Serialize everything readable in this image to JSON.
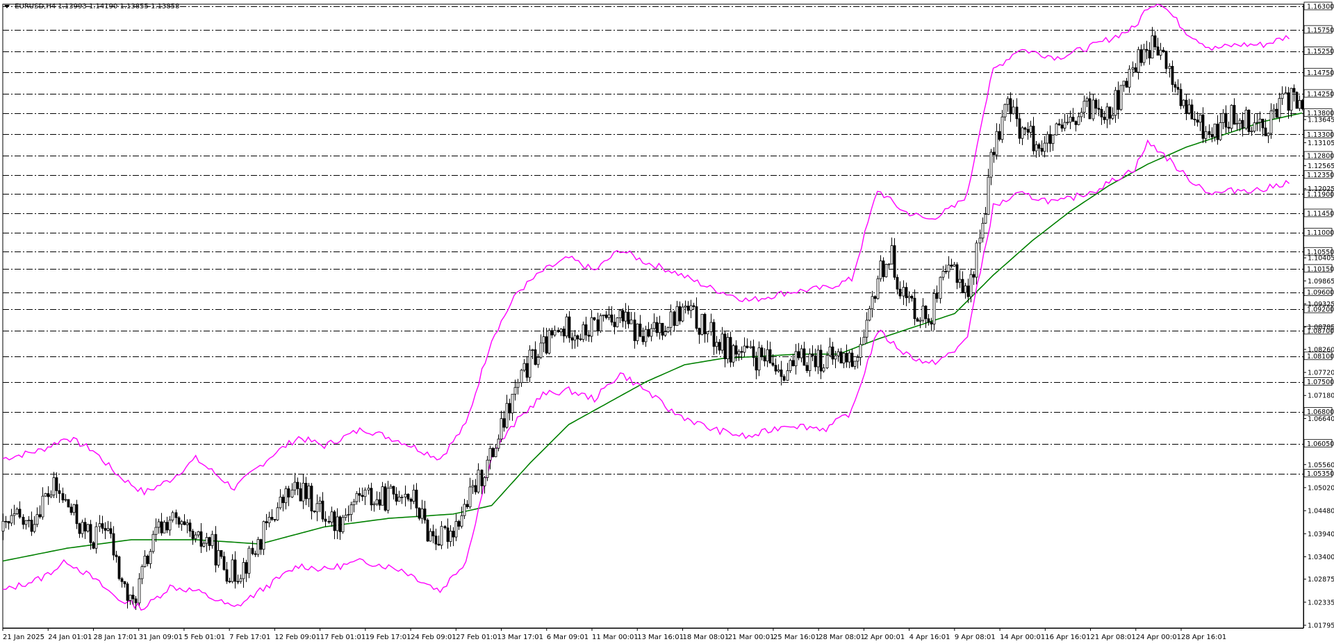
{
  "header": {
    "symbol": "EURUSD,H4",
    "open": "1.13993",
    "high": "1.14190",
    "low": "1.13855",
    "close": "1.13858"
  },
  "colors": {
    "background": "#ffffff",
    "grid": "#000000",
    "candle": "#000000",
    "bollinger": "#ff00ff",
    "moving_average": "#008000"
  },
  "chart_data": {
    "type": "candlestick",
    "symbol": "EURUSD",
    "timeframe": "H4",
    "ylim": [
      1.0173,
      1.1635
    ],
    "price_levels": [
      1.163,
      1.1575,
      1.1525,
      1.1475,
      1.1425,
      1.138,
      1.133,
      1.128,
      1.1235,
      1.119,
      1.1145,
      1.11,
      1.1055,
      1.1015,
      1.096,
      1.092,
      1.087,
      1.081,
      1.075,
      1.068,
      1.0605,
      1.0535
    ],
    "price_level_labels": [
      "1.16300",
      "1.15750",
      "1.15250",
      "1.14750",
      "1.14250",
      "1.13800",
      "1.13300",
      "1.12800",
      "1.12350",
      "1.11900",
      "1.11450",
      "1.11000",
      "1.10550",
      "1.10150",
      "1.09600",
      "1.09200",
      "1.08700",
      "1.08100",
      "1.07500",
      "1.06800",
      "1.06050",
      "1.05350"
    ],
    "axis_ticks": [
      "1.13645",
      "1.13105",
      "1.12565",
      "1.12025",
      "1.10405",
      "1.09865",
      "1.09325",
      "1.08785",
      "1.08260",
      "1.07720",
      "1.07180",
      "1.06640",
      "1.05560",
      "1.05020",
      "1.04480",
      "1.03940",
      "1.03400",
      "1.02875",
      "1.02335",
      "1.01795"
    ],
    "time_labels": [
      "21 Jan 2025",
      "24 Jan 01:01",
      "28 Jan 17:01",
      "31 Jan 09:01",
      "5 Feb 01:01",
      "7 Feb 17:01",
      "12 Feb 09:01",
      "17 Feb 01:01",
      "19 Feb 17:01",
      "24 Feb 09:01",
      "27 Feb 01:01",
      "3 Mar 17:01",
      "6 Mar 09:01",
      "11 Mar 00:01",
      "13 Mar 16:01",
      "18 Mar 08:01",
      "21 Mar 00:01",
      "25 Mar 16:01",
      "28 Mar 08:01",
      "2 Apr 00:01",
      "4 Apr 16:01",
      "9 Apr 08:01",
      "14 Apr 00:01",
      "16 Apr 16:01",
      "21 Apr 08:01",
      "24 Apr 00:01",
      "28 Apr 16:01"
    ],
    "close_path": [
      [
        0,
        1.04
      ],
      [
        1,
        1.043
      ],
      [
        2,
        1.041
      ],
      [
        3,
        1.047
      ],
      [
        4,
        1.05
      ],
      [
        5,
        1.046
      ],
      [
        6,
        1.041
      ],
      [
        7,
        1.038
      ],
      [
        8,
        1.042
      ],
      [
        9,
        1.03
      ],
      [
        10,
        1.022
      ],
      [
        11,
        1.032
      ],
      [
        12,
        1.04
      ],
      [
        13,
        1.043
      ],
      [
        14,
        1.04
      ],
      [
        15,
        1.037
      ],
      [
        16,
        1.038
      ],
      [
        17,
        1.032
      ],
      [
        18,
        1.03
      ],
      [
        19,
        1.033
      ],
      [
        20,
        1.038
      ],
      [
        21,
        1.044
      ],
      [
        22,
        1.048
      ],
      [
        23,
        1.05
      ],
      [
        24,
        1.047
      ],
      [
        25,
        1.044
      ],
      [
        26,
        1.042
      ],
      [
        27,
        1.046
      ],
      [
        28,
        1.049
      ],
      [
        29,
        1.047
      ],
      [
        30,
        1.048
      ],
      [
        31,
        1.05
      ],
      [
        32,
        1.047
      ],
      [
        33,
        1.04
      ],
      [
        34,
        1.038
      ],
      [
        35,
        1.041
      ],
      [
        36,
        1.046
      ],
      [
        37,
        1.052
      ],
      [
        38,
        1.058
      ],
      [
        39,
        1.066
      ],
      [
        40,
        1.074
      ],
      [
        41,
        1.08
      ],
      [
        42,
        1.083
      ],
      [
        43,
        1.086
      ],
      [
        44,
        1.088
      ],
      [
        45,
        1.086
      ],
      [
        46,
        1.088
      ],
      [
        47,
        1.091
      ],
      [
        48,
        1.09
      ],
      [
        49,
        1.087
      ],
      [
        50,
        1.085
      ],
      [
        51,
        1.088
      ],
      [
        52,
        1.09
      ],
      [
        53,
        1.092
      ],
      [
        54,
        1.089
      ],
      [
        55,
        1.086
      ],
      [
        56,
        1.083
      ],
      [
        57,
        1.082
      ],
      [
        58,
        1.081
      ],
      [
        59,
        1.08
      ],
      [
        60,
        1.079
      ],
      [
        61,
        1.078
      ],
      [
        62,
        1.08
      ],
      [
        63,
        1.081
      ],
      [
        64,
        1.08
      ],
      [
        65,
        1.081
      ],
      [
        66,
        1.08
      ],
      [
        67,
        1.085
      ],
      [
        68,
        1.1
      ],
      [
        69,
        1.105
      ],
      [
        70,
        1.095
      ],
      [
        71,
        1.092
      ],
      [
        72,
        1.09
      ],
      [
        73,
        1.098
      ],
      [
        74,
        1.102
      ],
      [
        75,
        1.095
      ],
      [
        76,
        1.11
      ],
      [
        77,
        1.13
      ],
      [
        78,
        1.14
      ],
      [
        79,
        1.135
      ],
      [
        80,
        1.132
      ],
      [
        81,
        1.13
      ],
      [
        82,
        1.133
      ],
      [
        83,
        1.135
      ],
      [
        84,
        1.138
      ],
      [
        85,
        1.14
      ],
      [
        86,
        1.139
      ],
      [
        87,
        1.142
      ],
      [
        88,
        1.15
      ],
      [
        89,
        1.154
      ],
      [
        90,
        1.152
      ],
      [
        91,
        1.145
      ],
      [
        92,
        1.138
      ],
      [
        93,
        1.135
      ],
      [
        94,
        1.133
      ],
      [
        95,
        1.136
      ],
      [
        96,
        1.138
      ],
      [
        97,
        1.136
      ],
      [
        98,
        1.135
      ],
      [
        99,
        1.138
      ],
      [
        100,
        1.142
      ],
      [
        101,
        1.1386
      ]
    ],
    "bollinger_upper": [
      [
        0,
        1.057
      ],
      [
        3,
        1.059
      ],
      [
        5,
        1.062
      ],
      [
        7,
        1.059
      ],
      [
        9,
        1.053
      ],
      [
        11,
        1.049
      ],
      [
        13,
        1.052
      ],
      [
        15,
        1.057
      ],
      [
        18,
        1.05
      ],
      [
        21,
        1.058
      ],
      [
        23,
        1.062
      ],
      [
        25,
        1.06
      ],
      [
        28,
        1.064
      ],
      [
        31,
        1.061
      ],
      [
        34,
        1.057
      ],
      [
        36,
        1.065
      ],
      [
        38,
        1.085
      ],
      [
        40,
        1.096
      ],
      [
        42,
        1.101
      ],
      [
        44,
        1.104
      ],
      [
        46,
        1.101
      ],
      [
        48,
        1.106
      ],
      [
        50,
        1.103
      ],
      [
        52,
        1.101
      ],
      [
        55,
        1.097
      ],
      [
        58,
        1.094
      ],
      [
        61,
        1.096
      ],
      [
        64,
        1.097
      ],
      [
        66,
        1.099
      ],
      [
        68,
        1.12
      ],
      [
        70,
        1.115
      ],
      [
        72,
        1.113
      ],
      [
        74,
        1.116
      ],
      [
        75,
        1.119
      ],
      [
        76,
        1.135
      ],
      [
        77,
        1.148
      ],
      [
        79,
        1.153
      ],
      [
        82,
        1.151
      ],
      [
        85,
        1.154
      ],
      [
        88,
        1.158
      ],
      [
        89,
        1.163
      ],
      [
        90,
        1.164
      ],
      [
        92,
        1.157
      ],
      [
        94,
        1.153
      ],
      [
        96,
        1.154
      ],
      [
        98,
        1.154
      ],
      [
        100,
        1.156
      ]
    ],
    "bollinger_lower": [
      [
        0,
        1.026
      ],
      [
        3,
        1.029
      ],
      [
        5,
        1.033
      ],
      [
        7,
        1.029
      ],
      [
        9,
        1.024
      ],
      [
        11,
        1.022
      ],
      [
        13,
        1.027
      ],
      [
        15,
        1.026
      ],
      [
        18,
        1.022
      ],
      [
        21,
        1.028
      ],
      [
        23,
        1.032
      ],
      [
        25,
        1.031
      ],
      [
        28,
        1.033
      ],
      [
        31,
        1.031
      ],
      [
        34,
        1.026
      ],
      [
        36,
        1.033
      ],
      [
        38,
        1.058
      ],
      [
        40,
        1.066
      ],
      [
        42,
        1.072
      ],
      [
        44,
        1.073
      ],
      [
        46,
        1.071
      ],
      [
        48,
        1.077
      ],
      [
        50,
        1.073
      ],
      [
        52,
        1.068
      ],
      [
        55,
        1.064
      ],
      [
        58,
        1.062
      ],
      [
        61,
        1.065
      ],
      [
        64,
        1.064
      ],
      [
        66,
        1.068
      ],
      [
        68,
        1.087
      ],
      [
        70,
        1.082
      ],
      [
        72,
        1.079
      ],
      [
        74,
        1.082
      ],
      [
        75,
        1.086
      ],
      [
        76,
        1.101
      ],
      [
        77,
        1.116
      ],
      [
        79,
        1.119
      ],
      [
        82,
        1.117
      ],
      [
        85,
        1.12
      ],
      [
        88,
        1.125
      ],
      [
        89,
        1.131
      ],
      [
        90,
        1.129
      ],
      [
        92,
        1.123
      ],
      [
        94,
        1.119
      ],
      [
        96,
        1.12
      ],
      [
        98,
        1.12
      ],
      [
        100,
        1.122
      ]
    ],
    "moving_average": [
      [
        0,
        1.033
      ],
      [
        5,
        1.036
      ],
      [
        10,
        1.038
      ],
      [
        15,
        1.038
      ],
      [
        20,
        1.037
      ],
      [
        25,
        1.041
      ],
      [
        30,
        1.043
      ],
      [
        35,
        1.044
      ],
      [
        38,
        1.046
      ],
      [
        41,
        1.056
      ],
      [
        44,
        1.065
      ],
      [
        47,
        1.07
      ],
      [
        50,
        1.075
      ],
      [
        53,
        1.079
      ],
      [
        56,
        1.0805
      ],
      [
        59,
        1.081
      ],
      [
        62,
        1.0815
      ],
      [
        65,
        1.0815
      ],
      [
        68,
        1.085
      ],
      [
        71,
        1.088
      ],
      [
        74,
        1.091
      ],
      [
        77,
        1.1
      ],
      [
        80,
        1.108
      ],
      [
        83,
        1.115
      ],
      [
        86,
        1.121
      ],
      [
        89,
        1.126
      ],
      [
        92,
        1.13
      ],
      [
        95,
        1.133
      ],
      [
        98,
        1.136
      ],
      [
        101,
        1.138
      ]
    ]
  }
}
